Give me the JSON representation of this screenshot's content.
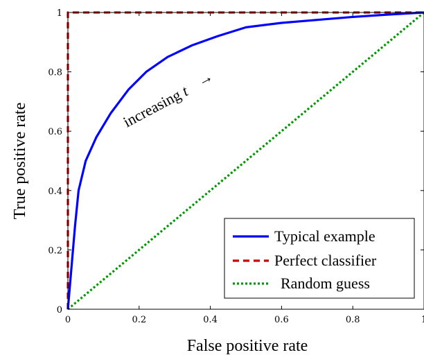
{
  "chart_data": {
    "type": "line",
    "xlabel": "False positive rate",
    "ylabel": "True positive rate",
    "xlim": [
      0,
      1
    ],
    "ylim": [
      0,
      1
    ],
    "x_ticks": [
      "0",
      "0.2",
      "0.4",
      "0.6",
      "0.8",
      "1"
    ],
    "y_ticks": [
      "0",
      "0.2",
      "0.4",
      "0.6",
      "0.8",
      "1"
    ],
    "grid": false,
    "legend_position": "bottom-right",
    "annotation": {
      "text": "increasing ",
      "variable": "t",
      "arrow": "→"
    },
    "series": [
      {
        "name": "Typical example",
        "color": "#0000ff",
        "style": "solid",
        "x": [
          0,
          0.01,
          0.02,
          0.03,
          0.05,
          0.08,
          0.12,
          0.17,
          0.22,
          0.28,
          0.35,
          0.42,
          0.5,
          0.6,
          0.7,
          0.8,
          0.9,
          1.0
        ],
        "y": [
          0,
          0.14,
          0.28,
          0.4,
          0.5,
          0.58,
          0.66,
          0.74,
          0.8,
          0.85,
          0.89,
          0.92,
          0.95,
          0.965,
          0.975,
          0.985,
          0.993,
          1.0
        ]
      },
      {
        "name": "Perfect classifier",
        "color": "#cc0000",
        "style": "dashed",
        "x": [
          0,
          0,
          1
        ],
        "y": [
          0,
          1,
          1
        ]
      },
      {
        "name": "Random guess",
        "color": "#009900",
        "style": "dotted",
        "x": [
          0,
          1
        ],
        "y": [
          0,
          1
        ]
      }
    ]
  }
}
